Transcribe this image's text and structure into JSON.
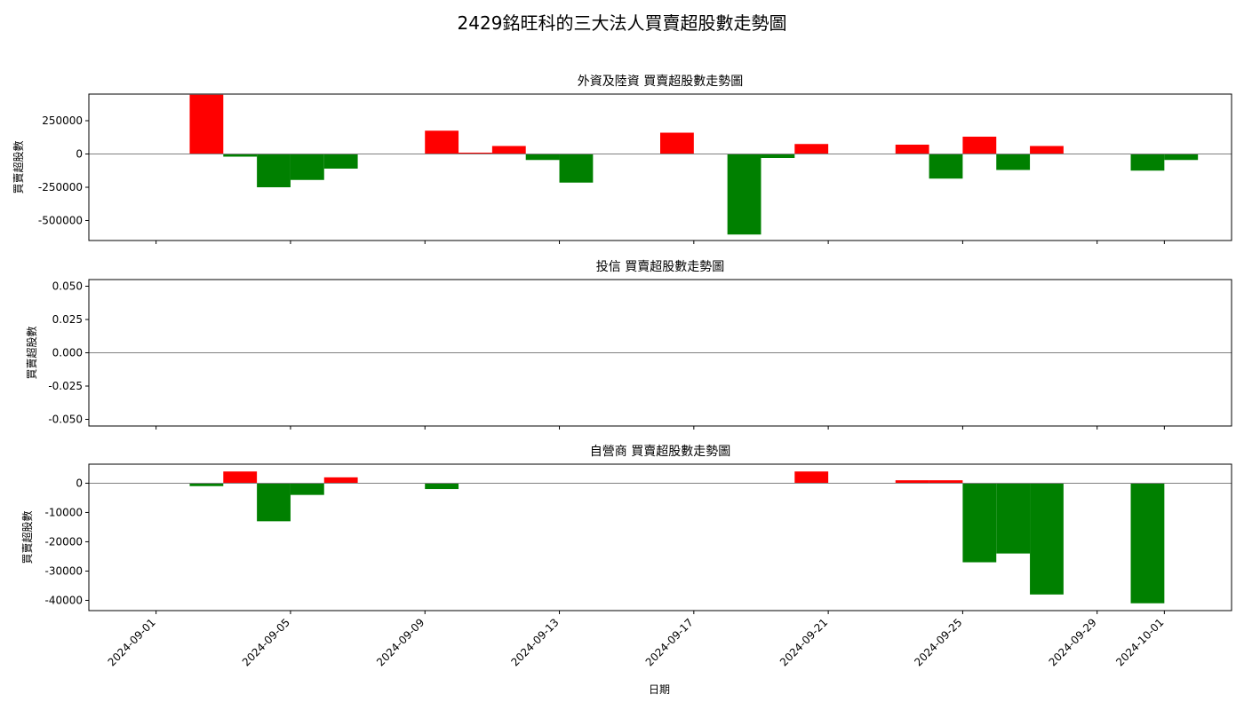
{
  "figure": {
    "suptitle": "2429銘旺科的三大法人買賣超股數走勢圖",
    "shared_xlabel": "日期"
  },
  "colors": {
    "positive": "#ff0000",
    "negative": "#008000",
    "zero_line": "#808080"
  },
  "chart_data": [
    {
      "type": "bar",
      "title": "外資及陸資 買賣超股數走勢圖",
      "ylabel": "買賣超股數",
      "ylim": [
        -650000,
        450000
      ],
      "yticks": [
        250000,
        0,
        -250000,
        -500000
      ],
      "ytick_labels": [
        "250000",
        "0",
        "-250000",
        "-500000"
      ],
      "dates": [
        "2024-09-02",
        "2024-09-03",
        "2024-09-04",
        "2024-09-05",
        "2024-09-06",
        "2024-09-09",
        "2024-09-10",
        "2024-09-11",
        "2024-09-12",
        "2024-09-13",
        "2024-09-16",
        "2024-09-18",
        "2024-09-19",
        "2024-09-20",
        "2024-09-23",
        "2024-09-24",
        "2024-09-25",
        "2024-09-26",
        "2024-09-27",
        "2024-09-30",
        "2024-10-01"
      ],
      "values": [
        445000,
        -20000,
        -250000,
        -195000,
        -110000,
        175000,
        10000,
        60000,
        -45000,
        -215000,
        160000,
        -605000,
        -30000,
        75000,
        70000,
        -185000,
        130000,
        -120000,
        60000,
        -125000,
        -45000
      ]
    },
    {
      "type": "bar",
      "title": "投信 買賣超股數走勢圖",
      "ylabel": "買賣超股數",
      "ylim": [
        -0.055,
        0.055
      ],
      "yticks": [
        0.05,
        0.025,
        0.0,
        -0.025,
        -0.05
      ],
      "ytick_labels": [
        "0.050",
        "0.025",
        "0.000",
        "-0.025",
        "-0.050"
      ],
      "dates": [],
      "values": []
    },
    {
      "type": "bar",
      "title": "自營商 買賣超股數走勢圖",
      "ylabel": "買賣超股數",
      "ylim": [
        -43500,
        6500
      ],
      "yticks": [
        0,
        -10000,
        -20000,
        -30000,
        -40000
      ],
      "ytick_labels": [
        "0",
        "-10000",
        "-20000",
        "-30000",
        "-40000"
      ],
      "dates": [
        "2024-09-02",
        "2024-09-03",
        "2024-09-04",
        "2024-09-05",
        "2024-09-06",
        "2024-09-09",
        "2024-09-20",
        "2024-09-23",
        "2024-09-24",
        "2024-09-25",
        "2024-09-26",
        "2024-09-27",
        "2024-09-30"
      ],
      "values": [
        -1000,
        4000,
        -13000,
        -4000,
        2000,
        -2000,
        4000,
        1000,
        1000,
        -27000,
        -24000,
        -38000,
        -41000
      ]
    }
  ],
  "x_axis": {
    "range": [
      "2024-08-30",
      "2024-10-03"
    ],
    "ticks": [
      "2024-09-01",
      "2024-09-05",
      "2024-09-09",
      "2024-09-13",
      "2024-09-17",
      "2024-09-21",
      "2024-09-25",
      "2024-09-29",
      "2024-10-01"
    ]
  }
}
